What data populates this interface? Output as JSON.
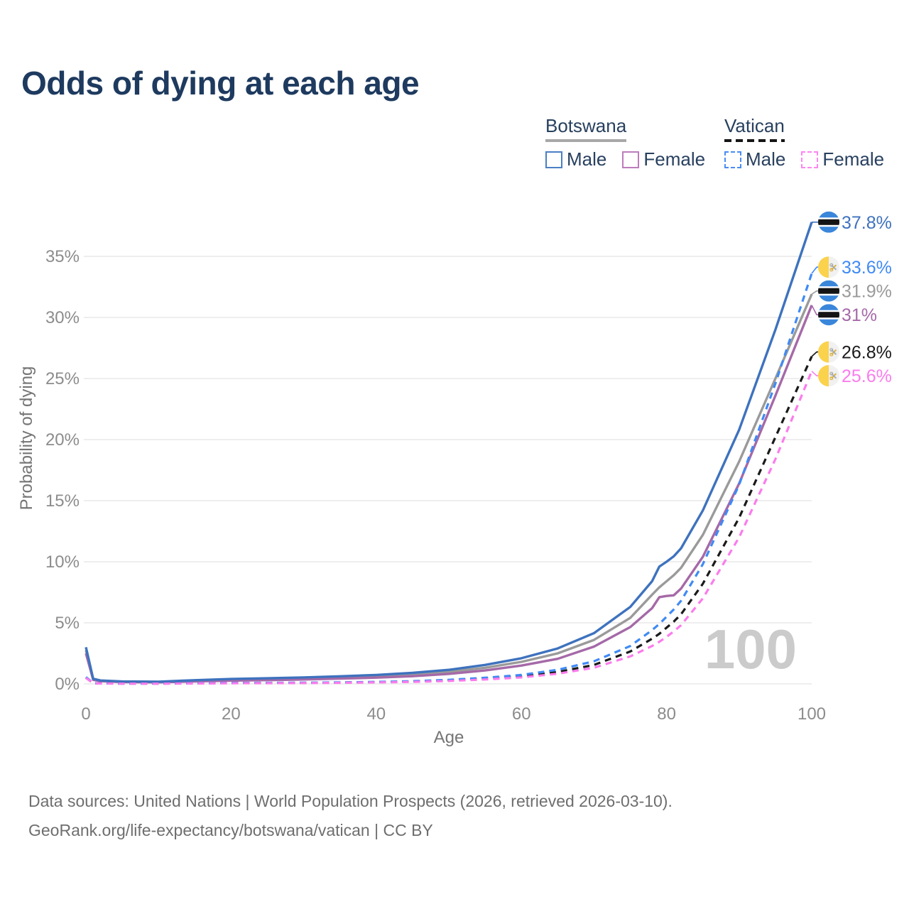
{
  "title": {
    "text": "Odds of dying at each age",
    "color": "#1e3a5f"
  },
  "legend": {
    "groups": [
      {
        "name": "Botswana",
        "line_style": "solid",
        "line_color": "#a8a8a8",
        "items": [
          {
            "label": "Male",
            "color": "#4a7fc5",
            "dashed": false
          },
          {
            "label": "Female",
            "color": "#bd7cbe",
            "dashed": false
          }
        ]
      },
      {
        "name": "Vatican",
        "line_style": "dashed",
        "line_color": "#151515",
        "items": [
          {
            "label": "Male",
            "color": "#4a8cf2",
            "dashed": true
          },
          {
            "label": "Female",
            "color": "#fd86f1",
            "dashed": true
          }
        ]
      }
    ]
  },
  "chart_data": {
    "type": "line",
    "title": "Odds of dying at each age",
    "xlabel": "Age",
    "ylabel": "Probability of dying",
    "xlim": [
      0,
      100
    ],
    "ylim_percent": [
      0,
      38
    ],
    "x_ticks": [
      0,
      20,
      40,
      60,
      80,
      100
    ],
    "y_tick_labels": [
      "0%",
      "5%",
      "10%",
      "15%",
      "20%",
      "25%",
      "30%",
      "35%"
    ],
    "grid": "horizontal",
    "watermark": "100",
    "ages": [
      0,
      1,
      2,
      5,
      10,
      15,
      20,
      25,
      30,
      35,
      40,
      45,
      50,
      55,
      60,
      65,
      70,
      75,
      78,
      79,
      80,
      81,
      82,
      85,
      90,
      95,
      100
    ],
    "series": [
      {
        "name": "Botswana Male",
        "country": "Botswana",
        "sex": "Male",
        "color": "#3e72be",
        "dashed": false,
        "flag": "botswana",
        "end_value": 37.8,
        "end_label": "37.8%",
        "values": [
          3.0,
          0.42,
          0.28,
          0.2,
          0.18,
          0.3,
          0.4,
          0.46,
          0.53,
          0.62,
          0.73,
          0.9,
          1.15,
          1.55,
          2.1,
          2.9,
          4.15,
          6.3,
          8.4,
          9.6,
          10.0,
          10.45,
          11.1,
          14.2,
          20.8,
          29.0,
          37.8
        ]
      },
      {
        "name": "Botswana",
        "country": "Botswana",
        "sex": "Both",
        "color": "#9a9a9a",
        "dashed": false,
        "flag": "botswana",
        "end_value": 31.9,
        "end_label": "31.9%",
        "values": [
          2.75,
          0.38,
          0.25,
          0.18,
          0.16,
          0.25,
          0.33,
          0.38,
          0.44,
          0.52,
          0.61,
          0.76,
          0.98,
          1.32,
          1.8,
          2.5,
          3.6,
          5.4,
          7.3,
          7.9,
          8.4,
          8.9,
          9.5,
          12.2,
          18.2,
          25.0,
          31.9
        ]
      },
      {
        "name": "Botswana Female",
        "country": "Botswana",
        "sex": "Female",
        "color": "#a569a8",
        "dashed": false,
        "flag": "botswana",
        "end_value": 31.0,
        "end_label": "31%",
        "values": [
          2.5,
          0.33,
          0.22,
          0.15,
          0.13,
          0.2,
          0.27,
          0.31,
          0.36,
          0.43,
          0.51,
          0.63,
          0.82,
          1.1,
          1.5,
          2.05,
          3.05,
          4.65,
          6.2,
          7.1,
          7.2,
          7.25,
          7.8,
          10.4,
          16.4,
          23.6,
          31.0
        ]
      },
      {
        "name": "Vatican Male",
        "country": "Vatican",
        "sex": "Male",
        "color": "#3f8af5",
        "dashed": true,
        "flag": "vatican",
        "end_value": 33.6,
        "end_label": "33.6%",
        "values": [
          0.55,
          0.07,
          0.04,
          0.03,
          0.03,
          0.05,
          0.08,
          0.09,
          0.1,
          0.12,
          0.16,
          0.22,
          0.33,
          0.5,
          0.73,
          1.15,
          1.85,
          3.1,
          4.4,
          4.9,
          5.5,
          6.1,
          6.8,
          9.8,
          16.3,
          24.6,
          33.6
        ]
      },
      {
        "name": "Vatican",
        "country": "Vatican",
        "sex": "Both",
        "color": "#1a1a1a",
        "dashed": true,
        "flag": "vatican",
        "end_value": 26.8,
        "end_label": "26.8%",
        "values": [
          0.5,
          0.06,
          0.04,
          0.03,
          0.03,
          0.04,
          0.07,
          0.08,
          0.09,
          0.11,
          0.14,
          0.19,
          0.28,
          0.43,
          0.62,
          0.97,
          1.55,
          2.65,
          3.7,
          4.1,
          4.6,
          5.1,
          5.7,
          8.2,
          13.6,
          20.2,
          26.8
        ]
      },
      {
        "name": "Vatican Female",
        "country": "Vatican",
        "sex": "Female",
        "color": "#fb7cec",
        "dashed": true,
        "flag": "vatican",
        "end_value": 25.6,
        "end_label": "25.6%",
        "values": [
          0.48,
          0.06,
          0.03,
          0.02,
          0.02,
          0.03,
          0.05,
          0.06,
          0.07,
          0.09,
          0.12,
          0.16,
          0.24,
          0.36,
          0.53,
          0.83,
          1.32,
          2.25,
          3.1,
          3.45,
          3.85,
          4.3,
          4.8,
          7.0,
          12.0,
          18.4,
          25.6
        ]
      }
    ]
  },
  "footer": {
    "line1": "Data sources: United Nations | World Population Prospects (2026, retrieved 2026-03-10).",
    "line2": "GeoRank.org/life-expectancy/botswana/vatican | CC BY"
  }
}
